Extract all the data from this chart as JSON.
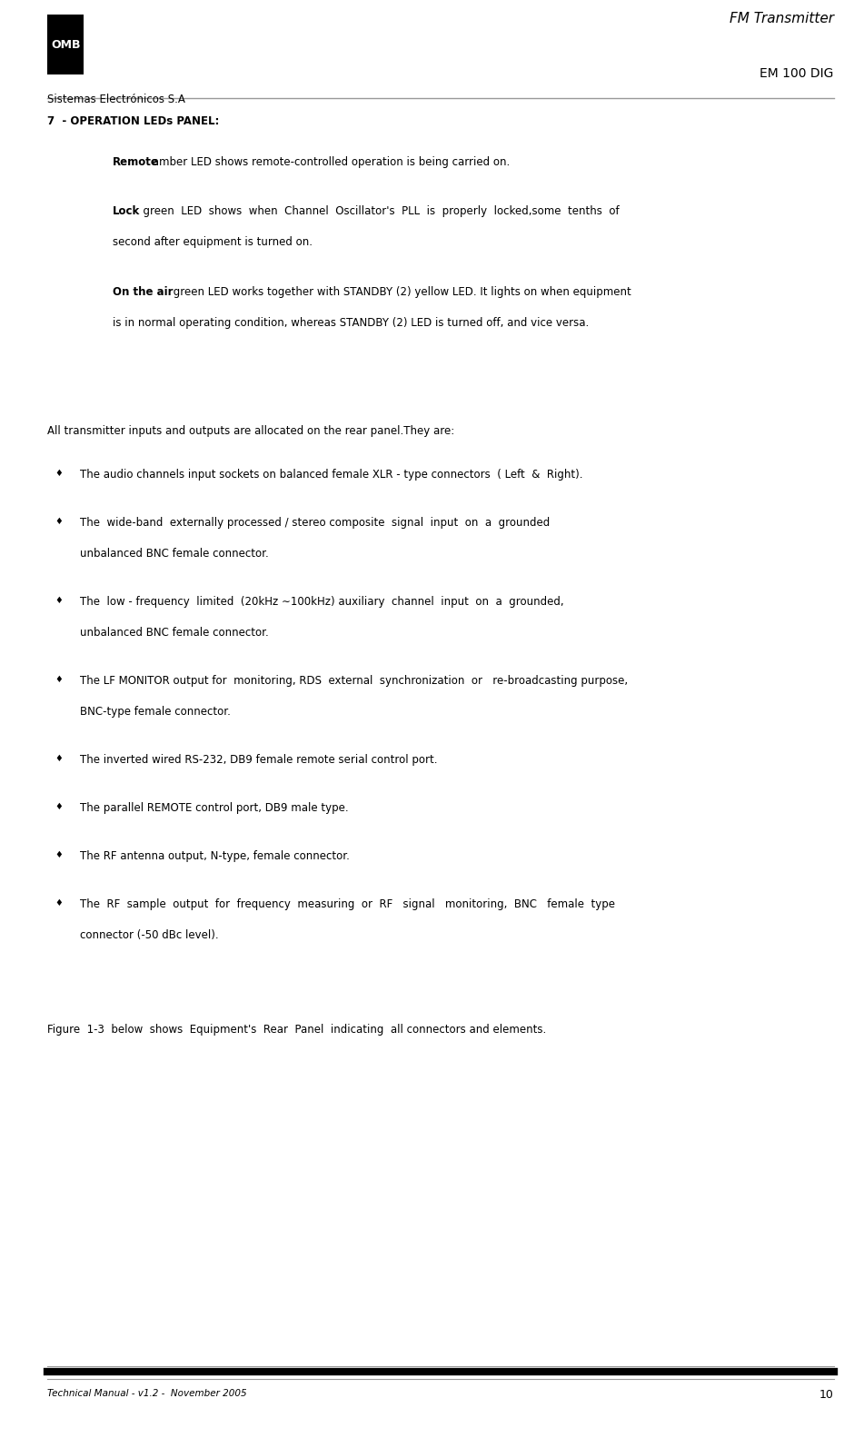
{
  "page_width": 9.51,
  "page_height": 15.83,
  "bg_color": "#ffffff",
  "header": {
    "logo_text": "OMB",
    "company": "Sistemas Electrónicos S.A",
    "title_right_top": "FM Transmitter",
    "title_right_bottom": "EM 100 DIG",
    "line_color": "#999999"
  },
  "footer": {
    "left_text": "Technical Manual - v1.2 -  November 2005",
    "right_text": "10",
    "bar_color": "#000000",
    "line_color": "#999999"
  },
  "section_heading": "7  - OPERATION LEDs PANEL:",
  "intro_line": "All transmitter inputs and outputs are allocated on the rear panel.They are:",
  "figure_caption": "Figure  1-3  below  shows  Equipment's  Rear  Panel  indicating  all connectors and elements."
}
